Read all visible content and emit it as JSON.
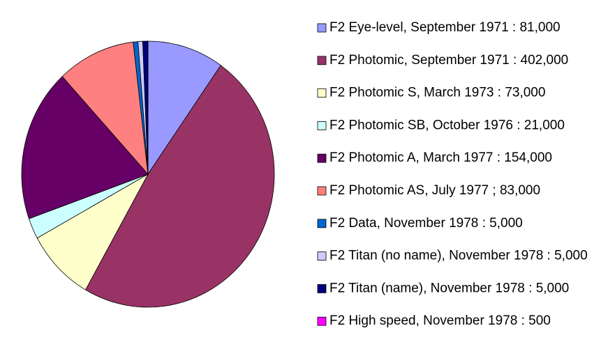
{
  "chart_data": {
    "type": "pie",
    "categories": [
      "F2 Eye-level, September 1971 : 81,000",
      "F2 Photomic, September 1971 : 402,000",
      "F2 Photomic S, March 1973 : 73,000",
      "F2 Photomic SB, October 1976 : 21,000",
      "F2 Photomic A, March 1977 : 154,000",
      "F2 Photomic AS, July 1977 ; 83,000",
      "F2 Data, November 1978 : 5,000",
      "F2 Titan (no name), November 1978 : 5,000",
      "F2 Titan (name), November 1978 : 5,000",
      "F2 High speed, November 1978 : 500"
    ],
    "values": [
      81000,
      402000,
      73000,
      21000,
      154000,
      83000,
      5000,
      5000,
      5000,
      500
    ],
    "colors": [
      "#9999ff",
      "#993366",
      "#ffffcc",
      "#ccffff",
      "#660066",
      "#ff8080",
      "#0066cc",
      "#ccccff",
      "#000080",
      "#ff00ff"
    ],
    "legend": "right"
  }
}
